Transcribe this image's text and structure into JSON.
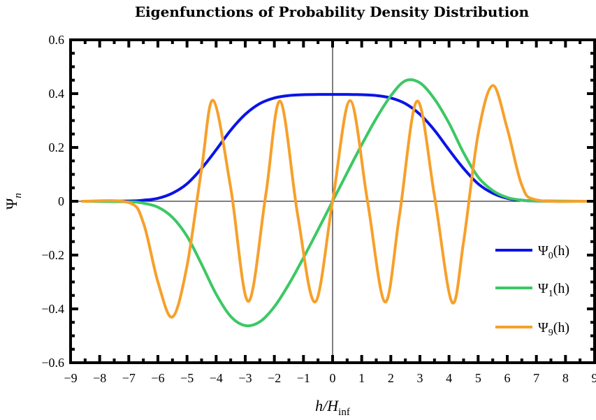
{
  "chart_data": {
    "type": "line",
    "title": "Eigenfunctions of Probability Density Distribution",
    "xlabel": "h/H_inf",
    "ylabel": "Ψ_n",
    "xlim": [
      -9,
      9
    ],
    "ylim": [
      -0.6,
      0.6
    ],
    "x_ticks": [
      -9,
      -8,
      -7,
      -6,
      -5,
      -4,
      -3,
      -2,
      -1,
      0,
      1,
      2,
      3,
      4,
      5,
      6,
      7,
      8,
      9
    ],
    "x_tick_labels": [
      "−9",
      "−8",
      "−7",
      "−6",
      "−5",
      "−4",
      "−3",
      "−2",
      "−1",
      "0",
      "1",
      "2",
      "3",
      "4",
      "5",
      "6",
      "7",
      "8",
      "9"
    ],
    "y_ticks": [
      -0.6,
      -0.4,
      -0.2,
      0,
      0.2,
      0.4,
      0.6
    ],
    "y_tick_labels": [
      "−0.6",
      "−0.4",
      "−0.2",
      "0",
      "0.2",
      "0.4",
      "0.6"
    ],
    "grid": false,
    "legend_position": "right",
    "series": [
      {
        "name": "Ψ0(h)",
        "color": "#0a14e6",
        "x": [
          -8.6,
          -7,
          -6.5,
          -6,
          -5.5,
          -5,
          -4.5,
          -4,
          -3.5,
          -3,
          -2.5,
          -2,
          -1.5,
          -1,
          -0.5,
          0,
          0.5,
          1,
          1.5,
          2,
          2.5,
          3,
          3.5,
          4,
          4.5,
          5,
          5.5,
          6,
          6.5,
          7,
          8.7
        ],
        "y": [
          0,
          0.001,
          0.004,
          0.011,
          0.03,
          0.065,
          0.122,
          0.191,
          0.264,
          0.323,
          0.363,
          0.384,
          0.393,
          0.396,
          0.397,
          0.397,
          0.397,
          0.396,
          0.393,
          0.384,
          0.363,
          0.323,
          0.264,
          0.191,
          0.122,
          0.065,
          0.03,
          0.011,
          0.004,
          0.001,
          0
        ]
      },
      {
        "name": "Ψ1(h)",
        "color": "#3cc864",
        "x": [
          -8.6,
          -7,
          -6.5,
          -6,
          -5.5,
          -5,
          -4.5,
          -4,
          -3.5,
          -3,
          -2.5,
          -2,
          -1.5,
          -1,
          -0.5,
          0,
          0.5,
          1,
          1.5,
          2,
          2.5,
          3,
          3.5,
          4,
          4.5,
          5,
          5.5,
          6,
          6.5,
          7,
          7.5,
          8.7
        ],
        "y": [
          0,
          -0.002,
          -0.007,
          -0.022,
          -0.06,
          -0.13,
          -0.234,
          -0.345,
          -0.428,
          -0.462,
          -0.448,
          -0.392,
          -0.308,
          -0.21,
          -0.106,
          0,
          0.106,
          0.21,
          0.308,
          0.392,
          0.448,
          0.44,
          0.38,
          0.29,
          0.18,
          0.09,
          0.04,
          0.014,
          0.004,
          0.001,
          0,
          0
        ]
      },
      {
        "name": "Ψ9(h)",
        "color": "#f7a02a",
        "x": [
          -8.6,
          -7,
          -6.5,
          -6,
          -5.5,
          -5,
          -4.5,
          -4.1,
          -3.5,
          -2.9,
          -2.3,
          -1.8,
          -1.2,
          -0.6,
          0,
          0.6,
          1.2,
          1.8,
          2.3,
          2.9,
          3.5,
          4.1,
          4.5,
          5,
          5.5,
          6,
          6.5,
          7,
          8.7
        ],
        "y": [
          0,
          -0.005,
          -0.08,
          -0.3,
          -0.43,
          -0.24,
          0.12,
          0.375,
          0.05,
          -0.372,
          0.02,
          0.372,
          -0.05,
          -0.374,
          0,
          0.374,
          0,
          -0.374,
          -0.05,
          0.372,
          0.02,
          -0.375,
          -0.15,
          0.25,
          0.43,
          0.27,
          0.06,
          0.005,
          0
        ]
      }
    ]
  },
  "colors": {
    "frame": "#000000",
    "zero_lines": "#000000"
  }
}
